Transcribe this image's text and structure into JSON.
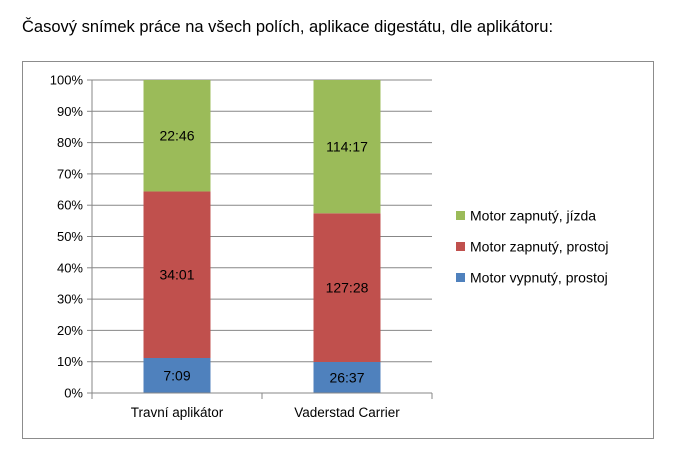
{
  "title": "Časový snímek práce na všech polích, aplikace digestátu, dle aplikátoru:",
  "chart_data": {
    "type": "bar",
    "stacked": "percent",
    "title": "Časový snímek práce na všech polích, aplikace digestátu, dle aplikátoru:",
    "categories": [
      "Travní aplikátor",
      "Vaderstad Carrier"
    ],
    "series": [
      {
        "name": "Motor vypnutý, prostoj",
        "color": "#4f81bd",
        "values": [
          7.15,
          26.617
        ],
        "labels": [
          "7:09",
          "26:37"
        ]
      },
      {
        "name": "Motor zapnutý, prostoj",
        "color": "#c0504d",
        "values": [
          34.017,
          127.467
        ],
        "labels": [
          "34:01",
          "127:28"
        ]
      },
      {
        "name": "Motor zapnutý, jízda",
        "color": "#9bbb59",
        "values": [
          22.767,
          114.283
        ],
        "labels": [
          "22:46",
          "114:17"
        ]
      }
    ],
    "value_format": "h:mm",
    "ylim": [
      0,
      100
    ],
    "yticks": [
      "0%",
      "10%",
      "20%",
      "30%",
      "40%",
      "50%",
      "60%",
      "70%",
      "80%",
      "90%",
      "100%"
    ],
    "grid": true,
    "legend_position": "right",
    "legend_order": [
      "Motor zapnutý, jízda",
      "Motor zapnutý, prostoj",
      "Motor vypnutý, prostoj"
    ]
  }
}
